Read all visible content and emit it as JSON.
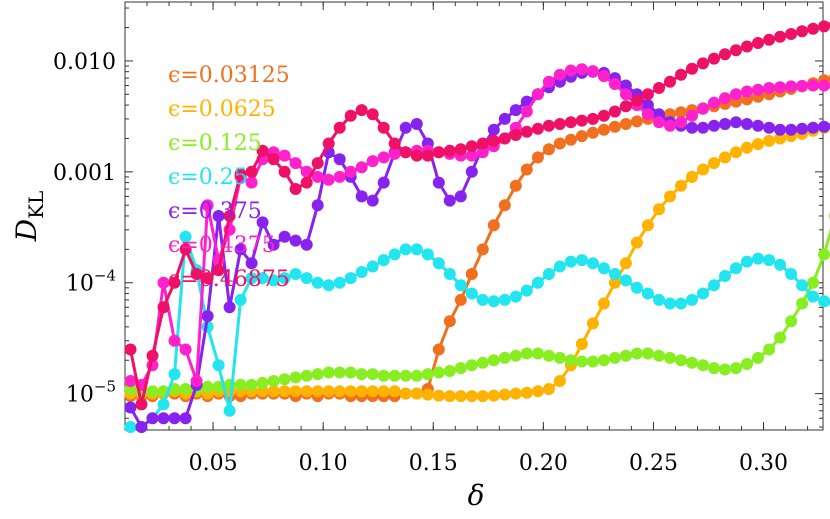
{
  "chart_data": {
    "type": "line",
    "title": "",
    "xlabel": "δ",
    "ylabel": "D",
    "ylabel_sub": "KL",
    "xlim": [
      0.01,
      0.327
    ],
    "ylim": [
      4.7e-06,
      0.034
    ],
    "yscale": "log",
    "x_ticks": [
      {
        "value": 0.05,
        "label": "0.05"
      },
      {
        "value": 0.1,
        "label": "0.10"
      },
      {
        "value": 0.15,
        "label": "0.15"
      },
      {
        "value": 0.2,
        "label": "0.20"
      },
      {
        "value": 0.25,
        "label": "0.25"
      },
      {
        "value": 0.3,
        "label": "0.30"
      }
    ],
    "y_ticks": [
      {
        "value": 1e-05,
        "mantissa": "10",
        "exp": "−5"
      },
      {
        "value": 0.0001,
        "mantissa": "10",
        "exp": "−4"
      },
      {
        "value": 0.001,
        "label": "0.001"
      },
      {
        "value": 0.01,
        "label": "0.010"
      }
    ],
    "legend_position": "left",
    "grid": false,
    "x_start": 0.0125,
    "x_step": 0.005,
    "series": [
      {
        "name": "ϵ=0.03125",
        "color": "#f07020",
        "y": [
          9.5e-06,
          9.5e-06,
          9.5e-06,
          1e-05,
          1e-05,
          9.5e-06,
          1e-05,
          9.5e-06,
          1e-05,
          9.5e-06,
          9.5e-06,
          1e-05,
          1e-05,
          1e-05,
          1e-05,
          9.5e-06,
          1e-05,
          9.5e-06,
          1e-05,
          1e-05,
          9.5e-06,
          9.5e-06,
          9.5e-06,
          9.5e-06,
          9.5e-06,
          1e-05,
          1e-05,
          1.1e-05,
          2.5e-05,
          4.5e-05,
          7e-05,
          0.00012,
          0.0002,
          0.00033,
          0.0005,
          0.00075,
          0.00105,
          0.00135,
          0.0016,
          0.0018,
          0.00195,
          0.0021,
          0.00225,
          0.0024,
          0.00255,
          0.0027,
          0.00285,
          0.003,
          0.00315,
          0.0033,
          0.00345,
          0.0036,
          0.00375,
          0.0039,
          0.0041,
          0.0043,
          0.0045,
          0.00475,
          0.005,
          0.0053,
          0.0056,
          0.0059,
          0.0063,
          0.0067,
          0.0072
        ]
      },
      {
        "name": "ϵ=0.0625",
        "color": "#ffb300",
        "y": [
          1e-05,
          1e-05,
          1e-05,
          1e-05,
          1.05e-05,
          1e-05,
          1.05e-05,
          1e-05,
          1.05e-05,
          1.05e-05,
          1.05e-05,
          1.05e-05,
          1.05e-05,
          1.05e-05,
          1.05e-05,
          1.05e-05,
          1.05e-05,
          1.05e-05,
          1.05e-05,
          1.05e-05,
          1.05e-05,
          1.05e-05,
          1.05e-05,
          1.05e-05,
          1.05e-05,
          1e-05,
          1e-05,
          9.8e-06,
          9.6e-06,
          9.5e-06,
          9.5e-06,
          9.5e-06,
          9.5e-06,
          9.6e-06,
          9.8e-06,
          1e-05,
          1.02e-05,
          1.05e-05,
          1.1e-05,
          1.3e-05,
          1.8e-05,
          2.8e-05,
          4.3e-05,
          6.5e-05,
          0.0001,
          0.00015,
          0.00023,
          0.00033,
          0.00046,
          0.0006,
          0.00075,
          0.0009,
          0.00105,
          0.0012,
          0.00135,
          0.0015,
          0.00165,
          0.00178,
          0.0019,
          0.002,
          0.0021,
          0.0022,
          0.00235,
          0.0025,
          0.00265
        ]
      },
      {
        "name": "ϵ=0.125",
        "color": "#88ee22",
        "y": [
          1.1e-05,
          1.05e-05,
          1.05e-05,
          1.05e-05,
          1.1e-05,
          1.1e-05,
          1.1e-05,
          1.15e-05,
          1.15e-05,
          1.2e-05,
          1.2e-05,
          1.2e-05,
          1.25e-05,
          1.3e-05,
          1.35e-05,
          1.4e-05,
          1.45e-05,
          1.5e-05,
          1.55e-05,
          1.55e-05,
          1.55e-05,
          1.5e-05,
          1.5e-05,
          1.45e-05,
          1.45e-05,
          1.45e-05,
          1.45e-05,
          1.5e-05,
          1.55e-05,
          1.6e-05,
          1.7e-05,
          1.8e-05,
          1.9e-05,
          2e-05,
          2.1e-05,
          2.2e-05,
          2.3e-05,
          2.3e-05,
          2.2e-05,
          2.1e-05,
          2e-05,
          1.95e-05,
          1.95e-05,
          2e-05,
          2.1e-05,
          2.2e-05,
          2.3e-05,
          2.3e-05,
          2.2e-05,
          2.1e-05,
          2e-05,
          1.9e-05,
          1.8e-05,
          1.7e-05,
          1.65e-05,
          1.7e-05,
          1.85e-05,
          2.1e-05,
          2.5e-05,
          3.2e-05,
          4.5e-05,
          6.5e-05,
          0.0001,
          0.00018,
          0.0004
        ]
      },
      {
        "name": "ϵ=0.25",
        "color": "#22e5f0",
        "y": [
          5e-06,
          5e-06,
          6e-06,
          8e-06,
          1.5e-05,
          0.00026,
          0.00013,
          4e-05,
          1.8e-05,
          7e-06,
          7e-05,
          0.00011,
          0.00011,
          0.000105,
          0.00011,
          0.00012,
          0.00011,
          0.0001,
          9.5e-05,
          0.0001,
          0.00011,
          0.000125,
          0.00014,
          0.00016,
          0.00018,
          0.0002,
          0.0002,
          0.00018,
          0.00015,
          0.00012,
          9.5e-05,
          8e-05,
          7e-05,
          6.8e-05,
          7e-05,
          7.5e-05,
          8.5e-05,
          0.0001,
          0.00012,
          0.00014,
          0.000155,
          0.00016,
          0.00015,
          0.000135,
          0.00012,
          0.000105,
          9e-05,
          8e-05,
          7e-05,
          6.5e-05,
          6.5e-05,
          7e-05,
          8e-05,
          9.5e-05,
          0.000115,
          0.000135,
          0.000155,
          0.000165,
          0.00016,
          0.000145,
          0.00012,
          9.5e-05,
          7.5e-05,
          6.8e-05,
          6.5e-05
        ]
      },
      {
        "name": "ϵ=0.375",
        "color": "#8822ee",
        "y": [
          7.5e-06,
          5e-06,
          6e-06,
          6e-06,
          6e-06,
          6e-06,
          1.2e-05,
          5e-05,
          0.0004,
          6e-05,
          0.0002,
          0.00015,
          0.00035,
          0.00022,
          0.00026,
          0.00024,
          0.00022,
          0.0005,
          0.0015,
          0.0013,
          0.0009,
          0.0006,
          0.00055,
          0.0008,
          0.0015,
          0.0025,
          0.0027,
          0.0018,
          0.0008,
          0.00055,
          0.0006,
          0.001,
          0.0017,
          0.0024,
          0.003,
          0.0036,
          0.0043,
          0.005,
          0.0058,
          0.0065,
          0.0072,
          0.0078,
          0.008,
          0.0078,
          0.007,
          0.006,
          0.005,
          0.004,
          0.0033,
          0.0028,
          0.0026,
          0.0025,
          0.0025,
          0.0026,
          0.0027,
          0.0028,
          0.0027,
          0.0026,
          0.0025,
          0.0024,
          0.0024,
          0.00245,
          0.0025,
          0.00255,
          0.0026
        ]
      },
      {
        "name": "ϵ=0.4375",
        "color": "#ff22cc",
        "y": [
          1.3e-05,
          1.2e-05,
          1.8e-05,
          0.0001,
          3e-05,
          2.5e-05,
          1.3e-05,
          0.0005,
          0.00016,
          0.0003,
          0.0009,
          0.0008,
          0.0013,
          0.0015,
          0.0014,
          0.0012,
          0.001,
          0.0009,
          0.00085,
          0.0009,
          0.001,
          0.0011,
          0.00125,
          0.00135,
          0.00145,
          0.0015,
          0.00155,
          0.00155,
          0.0015,
          0.00145,
          0.0014,
          0.0014,
          0.0015,
          0.0017,
          0.002,
          0.0025,
          0.0035,
          0.005,
          0.0065,
          0.0075,
          0.0082,
          0.0084,
          0.0081,
          0.0073,
          0.0062,
          0.005,
          0.004,
          0.0033,
          0.0028,
          0.0026,
          0.0028,
          0.0032,
          0.0037,
          0.0042,
          0.0046,
          0.005,
          0.0053,
          0.0055,
          0.0057,
          0.0058,
          0.0059,
          0.00595,
          0.006,
          0.006,
          0.006
        ]
      },
      {
        "name": "ϵ=0.46875",
        "color": "#ee1166",
        "y": [
          2.5e-05,
          8e-06,
          2.2e-05,
          6e-05,
          0.0001,
          0.0002,
          0.00012,
          0.00011,
          0.00013,
          0.0004,
          0.00095,
          0.001,
          0.00155,
          0.0013,
          0.001,
          0.0007,
          0.0008,
          0.0012,
          0.0018,
          0.0025,
          0.0032,
          0.0036,
          0.0033,
          0.0025,
          0.0018,
          0.0015,
          0.0014,
          0.0014,
          0.0015,
          0.00155,
          0.0016,
          0.0017,
          0.0018,
          0.0019,
          0.002,
          0.00215,
          0.0023,
          0.00245,
          0.0026,
          0.0027,
          0.0028,
          0.0029,
          0.003,
          0.0032,
          0.0035,
          0.0039,
          0.0044,
          0.005,
          0.0057,
          0.0065,
          0.0075,
          0.0085,
          0.0095,
          0.0105,
          0.0115,
          0.0125,
          0.0135,
          0.0145,
          0.0155,
          0.0165,
          0.0175,
          0.0185,
          0.0195,
          0.0205,
          0.0215
        ]
      }
    ]
  }
}
